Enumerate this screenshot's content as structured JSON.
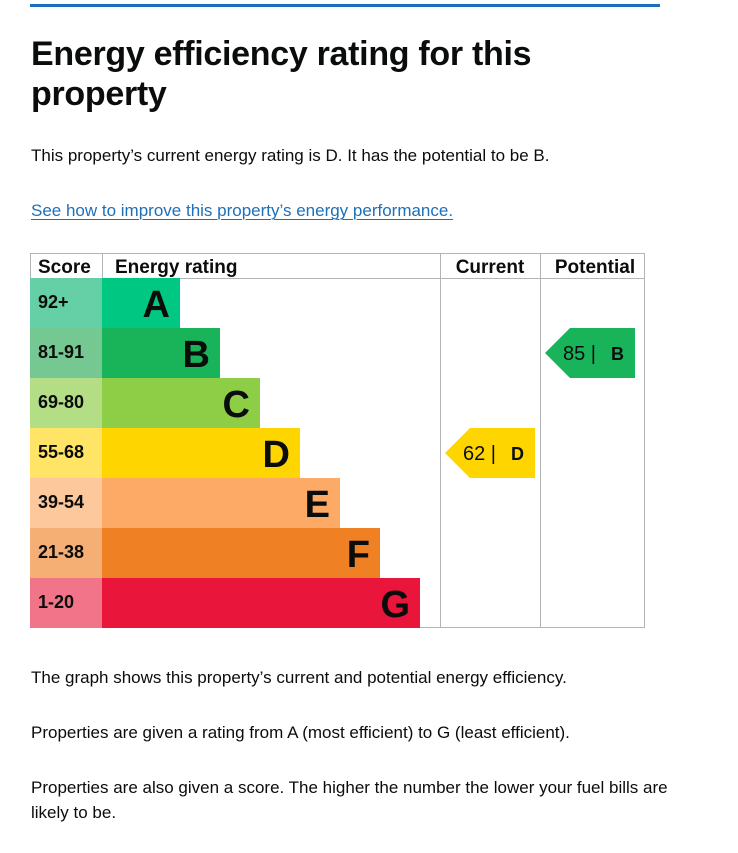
{
  "page": {
    "title": "Energy efficiency rating for this property",
    "summary": "This property’s current energy rating is D. It has the potential to be B.",
    "link_text": "See how to improve this property’s energy performance.",
    "para_graph": "The graph shows this property’s current and potential energy efficiency.",
    "para_rating": "Properties are given a rating from A (most efficient) to G (least efficient).",
    "para_score": "Properties are also given a score. The higher the number the lower your fuel bills are likely to be."
  },
  "chart_data": {
    "type": "bar",
    "headers": {
      "score": "Score",
      "rating": "Energy rating",
      "current": "Current",
      "potential": "Potential"
    },
    "bands": [
      {
        "letter": "A",
        "range": "92+",
        "color": "#00c781",
        "score_bg": "#65d0a5"
      },
      {
        "letter": "B",
        "range": "81-91",
        "color": "#19b459",
        "score_bg": "#76c892"
      },
      {
        "letter": "C",
        "range": "69-80",
        "color": "#8dce46",
        "score_bg": "#b3de86"
      },
      {
        "letter": "D",
        "range": "55-68",
        "color": "#ffd500",
        "score_bg": "#ffe466"
      },
      {
        "letter": "E",
        "range": "39-54",
        "color": "#fcaa65",
        "score_bg": "#fdc89c"
      },
      {
        "letter": "F",
        "range": "21-38",
        "color": "#ef8023",
        "score_bg": "#f5ae74"
      },
      {
        "letter": "G",
        "range": "1-20",
        "color": "#e9153b",
        "score_bg": "#f27489"
      }
    ],
    "current": {
      "score": 62,
      "letter": "D",
      "color": "#ffd500"
    },
    "potential": {
      "score": 85,
      "letter": "B",
      "color": "#19b459"
    }
  }
}
